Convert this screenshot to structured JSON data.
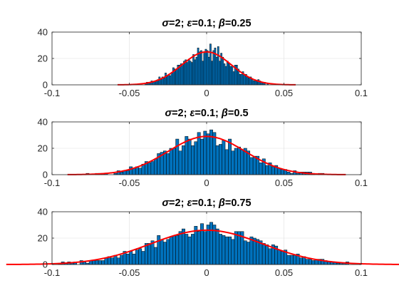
{
  "figure": {
    "background": "#ffffff"
  },
  "chart_data": [
    {
      "type": "histogram",
      "title_parts": [
        "σ",
        "=2; ",
        "ε",
        "=0.1; ",
        "β",
        "=0.25"
      ],
      "xlim": [
        -0.1,
        0.1
      ],
      "ylim": [
        0,
        40
      ],
      "xticks": [
        -0.1,
        -0.05,
        0,
        0.05,
        0.1
      ],
      "xtick_labels": [
        "-0.1",
        "-0.05",
        "0",
        "0.05",
        "0.1"
      ],
      "yticks": [
        0,
        20,
        40
      ],
      "ytick_labels": [
        "0",
        "20",
        "40"
      ],
      "grid": true,
      "bar_color": "#0072bd",
      "bar_edge_color": "#000000",
      "curve_color": "#ff0000",
      "bin_width": 0.001,
      "bin_range": [
        -0.04,
        0.04
      ],
      "fit": {
        "mean": 0,
        "std": 0.016,
        "peak": 25
      },
      "noise": 0.28
    },
    {
      "type": "histogram",
      "title_parts": [
        "σ",
        "=2; ",
        "ε",
        "=0.1; ",
        "β",
        "=0.5"
      ],
      "xlim": [
        -0.1,
        0.1
      ],
      "ylim": [
        0,
        40
      ],
      "xticks": [
        -0.1,
        -0.05,
        0,
        0.05,
        0.1
      ],
      "xtick_labels": [
        "-0.1",
        "-0.05",
        "0",
        "0.05",
        "0.1"
      ],
      "yticks": [
        0,
        20,
        40
      ],
      "ytick_labels": [
        "0",
        "20",
        "40"
      ],
      "grid": true,
      "bar_color": "#0072bd",
      "bar_edge_color": "#000000",
      "curve_color": "#ff0000",
      "bin_width": 0.002,
      "bin_range": [
        -0.086,
        0.078
      ],
      "fit": {
        "mean": 0,
        "std": 0.025,
        "peak": 29
      },
      "noise": 0.25
    },
    {
      "type": "histogram",
      "title_parts": [
        "σ",
        "=2; ",
        "ε",
        "=0.1; ",
        "β",
        "=0.75"
      ],
      "xlim": [
        -0.1,
        0.1
      ],
      "ylim": [
        0,
        40
      ],
      "xticks": [
        -0.1,
        -0.05,
        0,
        0.05,
        0.1
      ],
      "xtick_labels": [
        "-0.1",
        "-0.05",
        "0",
        "0.05",
        "0.1"
      ],
      "yticks": [
        0,
        20,
        40
      ],
      "ytick_labels": [
        "0",
        "20",
        "40"
      ],
      "grid": true,
      "bar_color": "#0072bd",
      "bar_edge_color": "#000000",
      "curve_color": "#ff0000",
      "bin_width": 0.002,
      "bin_range": [
        -0.098,
        0.094
      ],
      "fit": {
        "mean": 0,
        "std": 0.036,
        "peak": 26
      },
      "noise": 0.22
    }
  ]
}
